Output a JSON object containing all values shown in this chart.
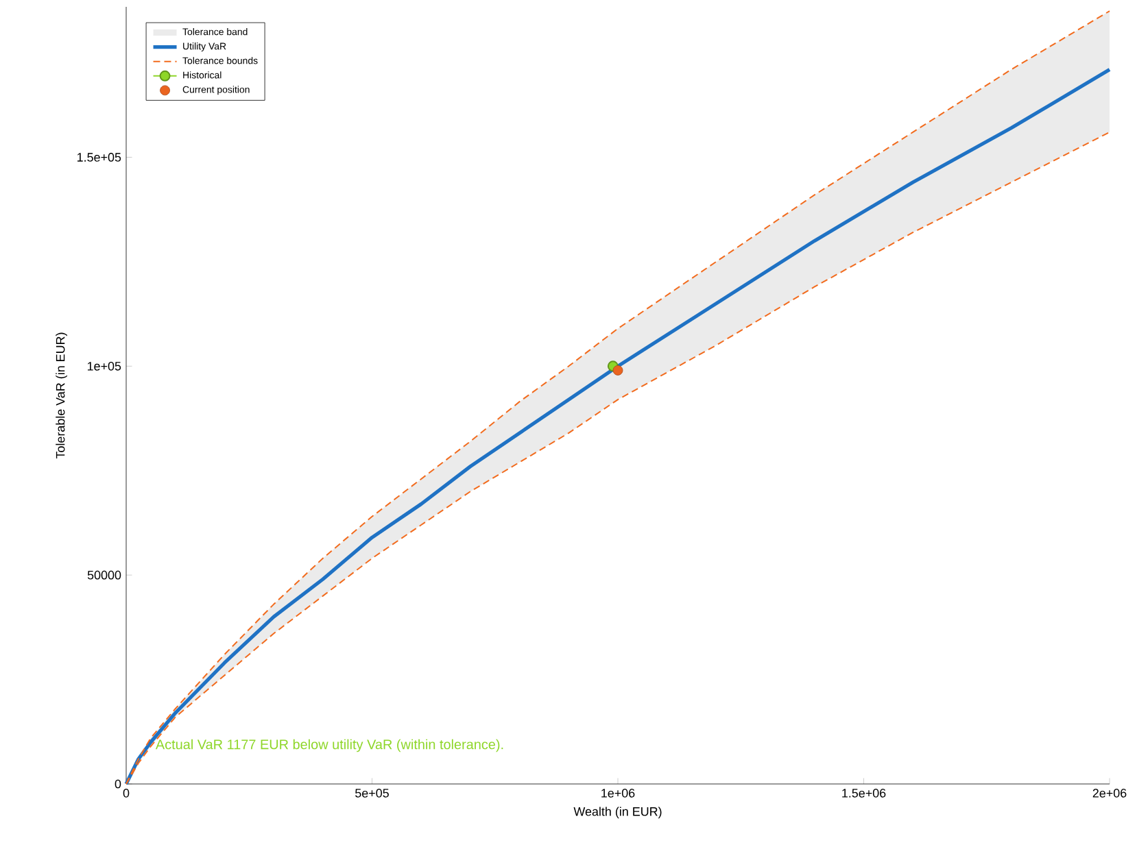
{
  "chart_data": {
    "type": "line",
    "xlabel": "Wealth (in EUR)",
    "ylabel": "Tolerable VaR (in EUR)",
    "x": [
      0,
      25000,
      50000,
      100000,
      200000,
      300000,
      400000,
      500000,
      600000,
      700000,
      800000,
      900000,
      1000000,
      1200000,
      1400000,
      1600000,
      1800000,
      2000000
    ],
    "series": [
      {
        "name": "Utility VaR",
        "color": "#1f72c4",
        "values": [
          0,
          6000,
          10000,
          17000,
          29000,
          40000,
          49000,
          59000,
          67000,
          76000,
          84000,
          92000,
          100000,
          115000,
          130000,
          144000,
          157000,
          171000
        ],
        "lower": [
          0,
          5000,
          9000,
          16000,
          26000,
          36000,
          45000,
          54000,
          62000,
          70000,
          77000,
          84000,
          92000,
          105000,
          119000,
          132000,
          144000,
          156000
        ],
        "upper": [
          0,
          6000,
          11000,
          18000,
          31000,
          43000,
          54000,
          64000,
          73000,
          82000,
          91500,
          100000,
          109000,
          125000,
          141000,
          156000,
          171000,
          185000
        ]
      },
      {
        "name": "Tolerance bounds",
        "line_style": "dashed",
        "color": "#f26b1d",
        "values": [
          0,
          6000,
          11000,
          18000,
          31000,
          43000,
          54000,
          64000,
          73000,
          82000,
          91500,
          100000,
          109000,
          125000,
          141000,
          156000,
          171000,
          185000
        ]
      },
      {
        "line_style": "dashed",
        "color": "#f26b1d",
        "values": [
          0,
          5000,
          9000,
          16000,
          26000,
          36000,
          45000,
          54000,
          62000,
          70000,
          77000,
          84000,
          92000,
          105000,
          119000,
          132000,
          144000,
          156000
        ]
      },
      {
        "name": "Historical",
        "marker": "circle",
        "color": "#8ed629",
        "x": [
          990000
        ],
        "values": [
          100000
        ]
      },
      {
        "name": "Current position",
        "type": "scatter",
        "marker": "circle",
        "color": "#ea6420",
        "x": [
          1000000
        ],
        "values": [
          99000
        ]
      }
    ],
    "xlim": [
      0,
      2000000
    ],
    "ylim": [
      0,
      186000
    ],
    "xticks": [
      0,
      {
        "value": 500000,
        "label": "5e+05"
      },
      {
        "value": 1000000,
        "label": "1e+06"
      },
      {
        "value": 1500000,
        "label": "1.5e+06"
      },
      {
        "value": 2000000,
        "label": "2e+06"
      }
    ],
    "yticks": [
      0,
      50000,
      {
        "value": 100000,
        "label": "1e+05"
      },
      {
        "value": 150000,
        "label": "1.5e+05"
      }
    ],
    "legend": "top left",
    "annotations": [
      "Actual VaR 1177 EUR below utility VaR (within tolerance).",
      "Tolerance band"
    ]
  }
}
